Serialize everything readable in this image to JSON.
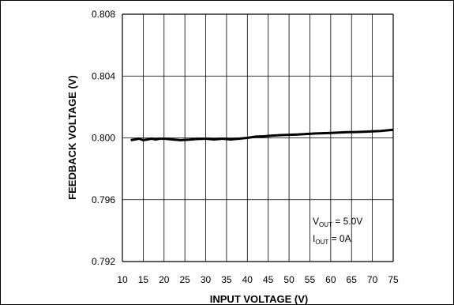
{
  "chart_data": {
    "type": "line",
    "xlabel": "INPUT VOLTAGE (V)",
    "ylabel": "FEEDBACK VOLTAGE (V)",
    "xlim": [
      10,
      75
    ],
    "ylim": [
      0.792,
      0.808
    ],
    "x_ticks": [
      "10",
      "15",
      "20",
      "25",
      "30",
      "35",
      "40",
      "45",
      "50",
      "55",
      "60",
      "65",
      "70",
      "75"
    ],
    "y_ticks": [
      "0.792",
      "0.796",
      "0.800",
      "0.804",
      "0.808"
    ],
    "grid": true,
    "annotation": {
      "line1": {
        "main": "V",
        "sub": "OUT",
        "rest": " = 5.0V"
      },
      "line2": {
        "main": "I",
        "sub": "OUT",
        "rest": " = 0A"
      }
    },
    "series": [
      {
        "x": [
          12,
          13,
          14,
          15,
          16,
          17,
          18,
          19,
          20,
          22,
          24,
          26,
          28,
          30,
          32,
          34,
          36,
          38,
          40,
          42,
          44,
          46,
          48,
          50,
          52,
          54,
          56,
          58,
          60,
          62,
          64,
          66,
          68,
          70,
          72,
          74,
          75
        ],
        "y": [
          0.79985,
          0.7999,
          0.79995,
          0.79985,
          0.7999,
          0.79995,
          0.7999,
          0.79995,
          0.79995,
          0.7999,
          0.79985,
          0.79988,
          0.79993,
          0.79995,
          0.7999,
          0.79995,
          0.7999,
          0.79995,
          0.8,
          0.80008,
          0.8001,
          0.80015,
          0.80018,
          0.8002,
          0.80022,
          0.80025,
          0.80028,
          0.8003,
          0.80032,
          0.80035,
          0.80037,
          0.80038,
          0.8004,
          0.80042,
          0.80045,
          0.8005,
          0.80052
        ]
      }
    ]
  }
}
